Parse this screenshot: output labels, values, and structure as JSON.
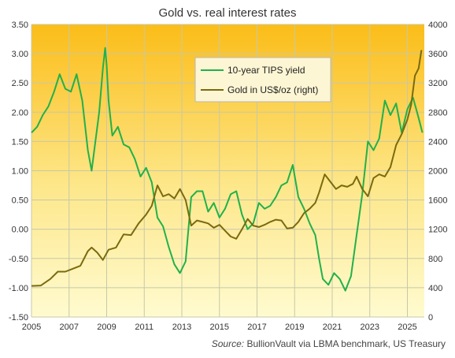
{
  "chart_data": {
    "type": "line",
    "title": "Gold vs. real interest rates",
    "source_label": "Source:",
    "source_text": " BullionVault via LBMA benchmark, US Treasury",
    "x_ticks": [
      "2005",
      "2007",
      "2009",
      "2011",
      "2013",
      "2015",
      "2017",
      "2019",
      "2021",
      "2023",
      "2025"
    ],
    "xlim": [
      2005.0,
      2025.9
    ],
    "y_left": {
      "ylim": [
        -1.5,
        3.5
      ],
      "ticks": [
        "3.50",
        "3.00",
        "2.50",
        "2.00",
        "1.50",
        "1.00",
        "0.50",
        "0.00",
        "-0.50",
        "-1.00",
        "-1.50"
      ]
    },
    "y_right": {
      "ylim": [
        0,
        4000
      ],
      "ticks": [
        "4000",
        "3600",
        "3200",
        "2800",
        "2400",
        "2000",
        "1600",
        "1200",
        "800",
        "400",
        "0"
      ]
    },
    "grid": true,
    "legend_position": "top-center",
    "series": [
      {
        "name": "10-year TIPS yield",
        "axis": "left",
        "color": "#22b04b",
        "x": [
          2005.0,
          2005.3,
          2005.6,
          2005.9,
          2006.2,
          2006.5,
          2006.8,
          2007.1,
          2007.4,
          2007.7,
          2008.0,
          2008.2,
          2008.4,
          2008.6,
          2008.8,
          2008.92,
          2009.0,
          2009.1,
          2009.3,
          2009.6,
          2009.9,
          2010.2,
          2010.5,
          2010.8,
          2011.1,
          2011.4,
          2011.7,
          2012.0,
          2012.3,
          2012.6,
          2012.9,
          2013.2,
          2013.5,
          2013.8,
          2014.1,
          2014.4,
          2014.7,
          2015.0,
          2015.3,
          2015.6,
          2015.9,
          2016.2,
          2016.5,
          2016.8,
          2017.1,
          2017.4,
          2017.7,
          2018.0,
          2018.3,
          2018.6,
          2018.9,
          2019.2,
          2019.5,
          2019.8,
          2020.1,
          2020.3,
          2020.5,
          2020.8,
          2021.1,
          2021.4,
          2021.7,
          2022.0,
          2022.3,
          2022.6,
          2022.9,
          2023.2,
          2023.5,
          2023.8,
          2024.1,
          2024.4,
          2024.7,
          2025.0,
          2025.3,
          2025.6,
          2025.8
        ],
        "y": [
          1.65,
          1.75,
          1.95,
          2.1,
          2.35,
          2.65,
          2.4,
          2.35,
          2.65,
          2.2,
          1.35,
          1.0,
          1.5,
          2.0,
          2.75,
          3.1,
          2.8,
          2.2,
          1.6,
          1.75,
          1.45,
          1.4,
          1.2,
          0.9,
          1.05,
          0.8,
          0.2,
          0.05,
          -0.3,
          -0.6,
          -0.75,
          -0.55,
          0.55,
          0.65,
          0.65,
          0.3,
          0.45,
          0.2,
          0.35,
          0.6,
          0.65,
          0.25,
          0.0,
          0.1,
          0.45,
          0.35,
          0.4,
          0.55,
          0.75,
          0.8,
          1.1,
          0.55,
          0.35,
          0.1,
          -0.1,
          -0.5,
          -0.85,
          -0.95,
          -0.75,
          -0.85,
          -1.05,
          -0.8,
          -0.1,
          0.6,
          1.5,
          1.35,
          1.55,
          2.2,
          1.95,
          2.15,
          1.65,
          2.05,
          2.25,
          1.9,
          1.65
        ]
      },
      {
        "name": "Gold in US$/oz (right)",
        "axis": "right",
        "color": "#7a6a0e",
        "x": [
          2005.0,
          2005.5,
          2006.0,
          2006.4,
          2006.8,
          2007.2,
          2007.6,
          2008.0,
          2008.2,
          2008.5,
          2008.8,
          2009.1,
          2009.5,
          2009.9,
          2010.3,
          2010.7,
          2011.1,
          2011.4,
          2011.7,
          2012.0,
          2012.3,
          2012.6,
          2012.9,
          2013.2,
          2013.5,
          2013.8,
          2014.1,
          2014.4,
          2014.7,
          2015.0,
          2015.3,
          2015.6,
          2015.9,
          2016.2,
          2016.5,
          2016.8,
          2017.1,
          2017.4,
          2017.7,
          2018.0,
          2018.3,
          2018.6,
          2018.9,
          2019.2,
          2019.5,
          2019.8,
          2020.1,
          2020.3,
          2020.6,
          2020.9,
          2021.2,
          2021.5,
          2021.8,
          2022.1,
          2022.3,
          2022.6,
          2022.9,
          2023.2,
          2023.5,
          2023.8,
          2024.1,
          2024.4,
          2024.7,
          2025.0,
          2025.2,
          2025.4,
          2025.6,
          2025.75
        ],
        "y": [
          425,
          430,
          520,
          620,
          620,
          660,
          700,
          900,
          950,
          880,
          780,
          920,
          950,
          1130,
          1120,
          1280,
          1400,
          1520,
          1800,
          1650,
          1680,
          1620,
          1750,
          1600,
          1250,
          1320,
          1300,
          1280,
          1220,
          1260,
          1180,
          1100,
          1070,
          1200,
          1340,
          1250,
          1230,
          1260,
          1300,
          1330,
          1320,
          1210,
          1220,
          1300,
          1420,
          1480,
          1560,
          1700,
          1950,
          1850,
          1750,
          1800,
          1780,
          1820,
          1920,
          1750,
          1650,
          1900,
          1950,
          1920,
          2050,
          2350,
          2500,
          2700,
          2900,
          3300,
          3400,
          3650
        ]
      }
    ]
  }
}
